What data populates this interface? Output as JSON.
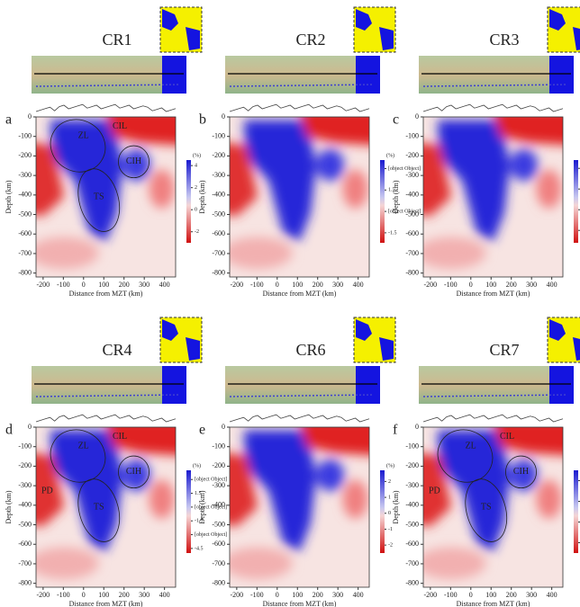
{
  "chart_data": [
    {
      "type": "section",
      "title": "CR1",
      "panel_label": "a",
      "xlabel": "Distance from MZT (km)",
      "ylabel": "Depth (km)",
      "xlim": [
        -235,
        455
      ],
      "xticks": [
        -200,
        -100,
        0,
        100,
        200,
        300,
        400
      ],
      "ylim": [
        0,
        -820
      ],
      "yticks": [
        0,
        -100,
        -200,
        -300,
        -400,
        -500,
        -600,
        -700,
        -800
      ],
      "colorbar": {
        "label": "(%)",
        "lim": [
          -3,
          4.5
        ],
        "ticks": [
          4,
          2,
          0,
          -2
        ]
      },
      "annotations": [
        "ZL",
        "CIL",
        "CIH",
        "TS"
      ]
    },
    {
      "type": "section",
      "title": "CR2",
      "panel_label": "b",
      "xlabel": "Distance from MZT (km)",
      "ylabel": "Depth (km)",
      "xlim": [
        -235,
        455
      ],
      "xticks": [
        -200,
        -100,
        0,
        100,
        200,
        300,
        400
      ],
      "ylim": [
        0,
        -820
      ],
      "yticks": [
        0,
        -100,
        -200,
        -300,
        -400,
        -500,
        -600,
        -700,
        -800
      ],
      "colorbar": {
        "label": "(%)",
        "lim": [
          -2.2,
          3.6
        ],
        "ticks": [
          {
            "value": 3,
            "label": "3.0"
          },
          1.5,
          {
            "value": 0,
            "label": "0.0"
          },
          -1.5
        ]
      },
      "annotations": []
    },
    {
      "type": "section",
      "title": "CR3",
      "panel_label": "c",
      "xlabel": "Distance from MZT (km)",
      "ylabel": "Depth (km)",
      "xlim": [
        -235,
        455
      ],
      "xticks": [
        -200,
        -100,
        0,
        100,
        200,
        300,
        400
      ],
      "ylim": [
        0,
        -820
      ],
      "yticks": [
        0,
        -100,
        -200,
        -300,
        -400,
        -500,
        -600,
        -700,
        -800
      ],
      "colorbar": {
        "label": "(%)",
        "lim": [
          -1.6,
          2.4
        ],
        "ticks": [
          2,
          1,
          0,
          -1
        ]
      },
      "annotations": []
    },
    {
      "type": "section",
      "title": "CR4",
      "panel_label": "d",
      "xlabel": "Distance from MZT (km)",
      "ylabel": "Depth (km)",
      "xlim": [
        -235,
        455
      ],
      "xticks": [
        -200,
        -100,
        0,
        100,
        200,
        300,
        400
      ],
      "ylim": [
        0,
        -820
      ],
      "yticks": [
        0,
        -100,
        -200,
        -300,
        -400,
        -500,
        -600,
        -700,
        -800
      ],
      "colorbar": {
        "label": "(%)",
        "lim": [
          -5,
          4
        ],
        "ticks": [
          {
            "value": 3,
            "label": "3.0"
          },
          1.5,
          {
            "value": 0,
            "label": "0.0"
          },
          -1.5,
          {
            "value": -3,
            "label": "-3.0"
          },
          -4.5
        ]
      },
      "annotations": [
        "ZL",
        "CIL",
        "CIH",
        "TS",
        "PD"
      ]
    },
    {
      "type": "section",
      "title": "CR6",
      "panel_label": "e",
      "xlabel": "Distance from MZT (km)",
      "ylabel": "Depth (km)",
      "xlim": [
        -235,
        455
      ],
      "xticks": [
        -200,
        -100,
        0,
        100,
        200,
        300,
        400
      ],
      "ylim": [
        0,
        -820
      ],
      "yticks": [
        0,
        -100,
        -200,
        -300,
        -400,
        -500,
        -600,
        -700,
        -800
      ],
      "colorbar": {
        "label": "(%)",
        "lim": [
          -2.5,
          2.7
        ],
        "ticks": [
          2,
          1,
          0,
          -1,
          -2
        ]
      },
      "annotations": []
    },
    {
      "type": "section",
      "title": "CR7",
      "panel_label": "f",
      "xlabel": "Distance from MZT (km)",
      "ylabel": "Depth (km)",
      "xlim": [
        -235,
        455
      ],
      "xticks": [
        -200,
        -100,
        0,
        100,
        200,
        300,
        400
      ],
      "ylim": [
        0,
        -820
      ],
      "yticks": [
        0,
        -100,
        -200,
        -300,
        -400,
        -500,
        -600,
        -700,
        -800
      ],
      "colorbar": {
        "label": "(%)",
        "lim": [
          -3,
          5
        ],
        "ticks": [
          4,
          2,
          0,
          -2
        ]
      },
      "annotations": [
        "ZL",
        "CIL",
        "CIH",
        "TS",
        "PD"
      ]
    }
  ]
}
